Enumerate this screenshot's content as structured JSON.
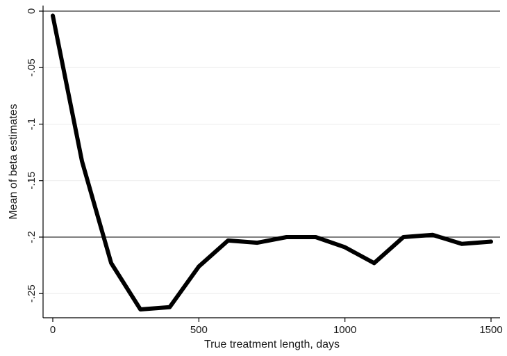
{
  "chart_data": {
    "type": "line",
    "title": "",
    "xlabel": "True treatment length, days",
    "ylabel": "Mean of beta estimates",
    "xlim": [
      0,
      1500
    ],
    "ylim": [
      -0.27,
      0
    ],
    "x_ticks": [
      {
        "value": 0,
        "label": "0"
      },
      {
        "value": 500,
        "label": "500"
      },
      {
        "value": 1000,
        "label": "1000"
      },
      {
        "value": 1500,
        "label": "1500"
      }
    ],
    "y_ticks": [
      {
        "value": 0,
        "label": "0"
      },
      {
        "value": -0.05,
        "label": "-.05"
      },
      {
        "value": -0.1,
        "label": "-.1"
      },
      {
        "value": -0.15,
        "label": "-.15"
      },
      {
        "value": -0.2,
        "label": "-.2"
      },
      {
        "value": -0.25,
        "label": "-.25"
      }
    ],
    "grid": true,
    "reference_lines": [
      0,
      -0.2
    ],
    "line_color": "#000000",
    "grid_color": "#ebebeb",
    "series": [
      {
        "x": [
          0,
          100,
          200,
          300,
          400,
          500,
          600,
          700,
          800,
          900,
          1000,
          1100,
          1200,
          1300,
          1400,
          1500
        ],
        "values": [
          -0.004,
          -0.133,
          -0.223,
          -0.264,
          -0.262,
          -0.226,
          -0.203,
          -0.205,
          -0.2,
          -0.2,
          -0.209,
          -0.223,
          -0.2,
          -0.198,
          -0.206,
          -0.204
        ]
      }
    ]
  }
}
